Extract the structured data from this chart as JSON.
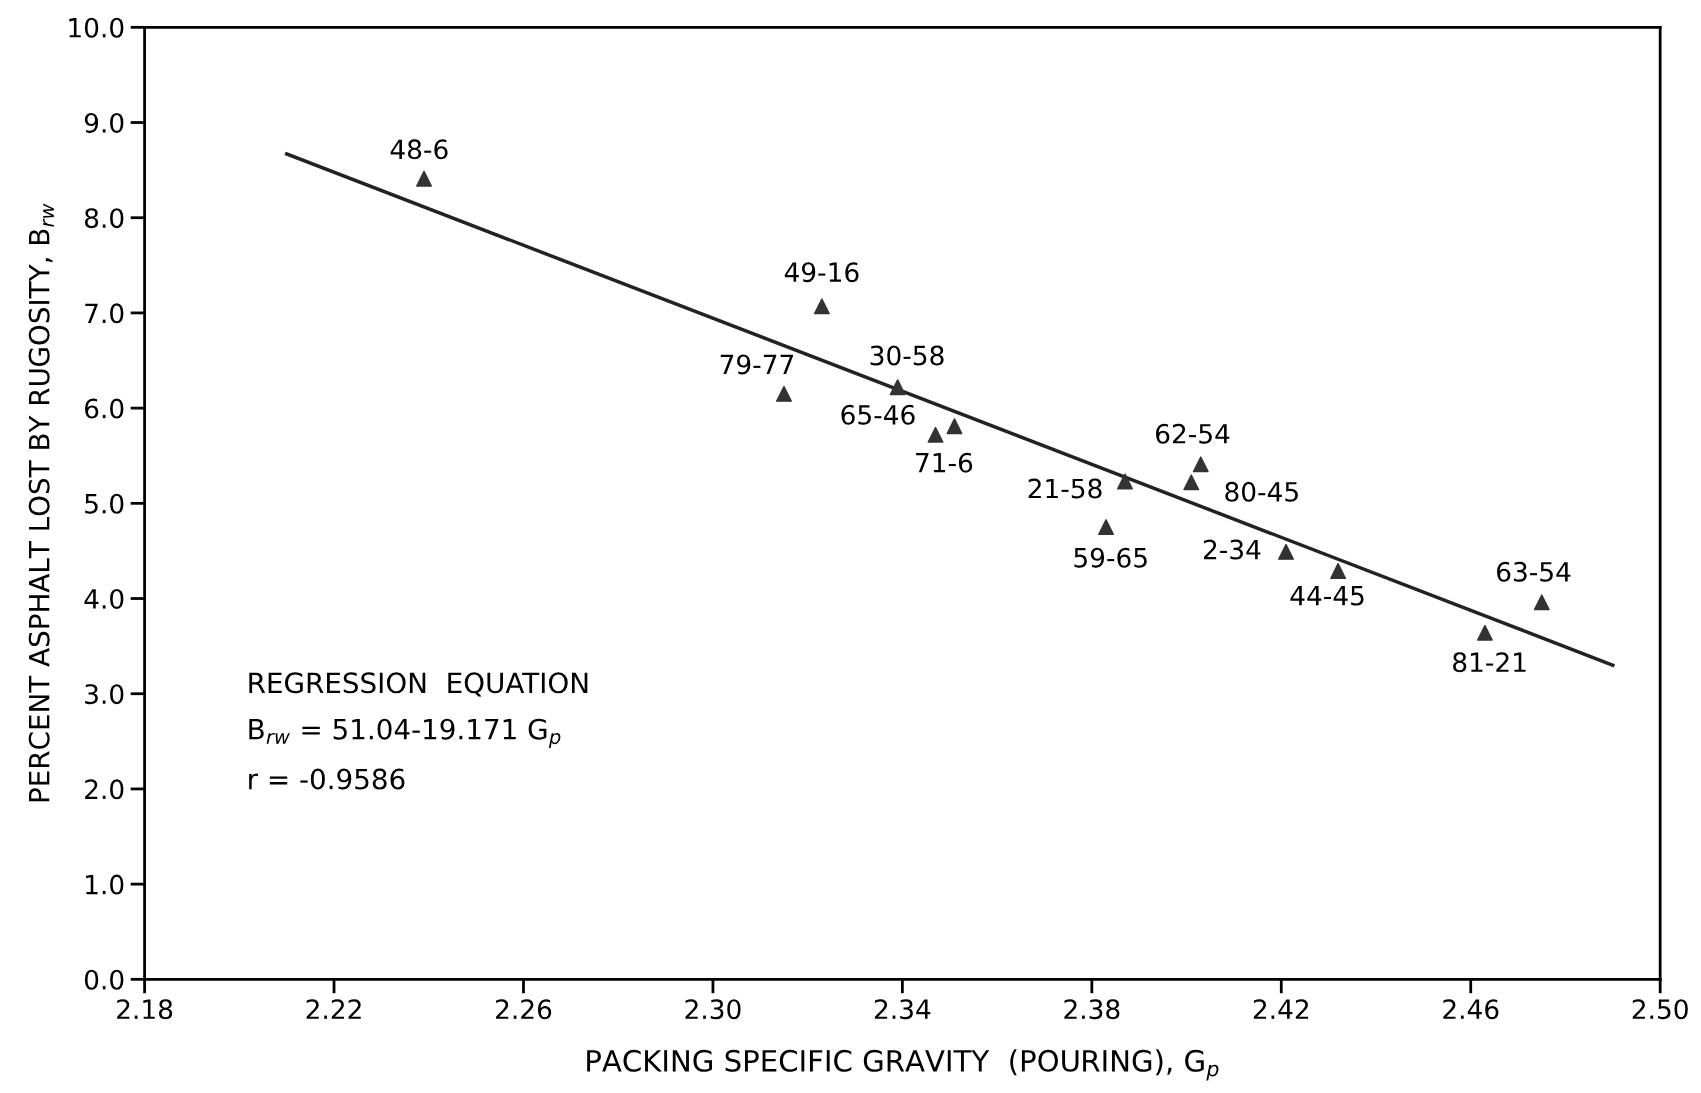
{
  "chart_data": {
    "type": "scatter",
    "xlabel": "PACKING SPECIFIC GRAVITY  (POURING), G$_{p}$",
    "ylabel": "PERCENT ASPHALT LOST BY RUGOSITY, B$_{rw}$",
    "xlim": [
      2.18,
      2.5
    ],
    "xticks": [
      {
        "value": 2.18,
        "label": "2.18"
      },
      {
        "value": 2.22,
        "label": "2.22"
      },
      {
        "value": 2.26,
        "label": "2.26"
      },
      {
        "value": 2.3,
        "label": "2.30"
      },
      {
        "value": 2.34,
        "label": "2.34"
      },
      {
        "value": 2.38,
        "label": "2.38"
      },
      {
        "value": 2.42,
        "label": "2.42"
      },
      {
        "value": 2.46,
        "label": "2.46"
      },
      {
        "value": 2.5,
        "label": "2.50"
      }
    ],
    "ylim": [
      0,
      10
    ],
    "yticks": [
      {
        "value": 0,
        "label": "0.0"
      },
      {
        "value": 1,
        "label": "1.0"
      },
      {
        "value": 2,
        "label": "2.0"
      },
      {
        "value": 3,
        "label": "3.0"
      },
      {
        "value": 4,
        "label": "4.0"
      },
      {
        "value": 5,
        "label": "5.0"
      },
      {
        "value": 6,
        "label": "6.0"
      },
      {
        "value": 7,
        "label": "7.0"
      },
      {
        "value": 8,
        "label": "8.0"
      },
      {
        "value": 9,
        "label": "9.0"
      },
      {
        "value": 10,
        "label": "10.0"
      }
    ],
    "grid": false,
    "legend": false,
    "series": [
      {
        "marker": "triangle",
        "color": "#333333",
        "x": [
          2.239,
          2.323,
          2.315,
          2.339,
          2.347,
          2.351,
          2.387,
          2.383,
          2.403,
          2.401,
          2.421,
          2.432,
          2.463,
          2.475
        ],
        "values": [
          8.41,
          7.07,
          6.15,
          6.22,
          5.72,
          5.81,
          5.23,
          4.75,
          5.41,
          5.22,
          4.49,
          4.29,
          3.64,
          3.96
        ]
      },
      {
        "type": "line",
        "marker": "none",
        "line_style": "solid",
        "color": "#222222",
        "x": [
          2.21,
          2.49
        ],
        "values": [
          8.67,
          3.3
        ]
      }
    ],
    "annotations": [
      {
        "text": "48-6",
        "x": 2.239,
        "y": 8.41
      },
      {
        "text": "49-16",
        "x": 2.323,
        "y": 7.07
      },
      {
        "text": "79-77",
        "x": 2.315,
        "y": 6.15
      },
      {
        "text": "30-58",
        "x": 2.339,
        "y": 6.22
      },
      {
        "text": "65-46",
        "x": 2.347,
        "y": 5.72
      },
      {
        "text": "71-6",
        "x": 2.351,
        "y": 5.81
      },
      {
        "text": "21-58",
        "x": 2.387,
        "y": 5.23
      },
      {
        "text": "59-65",
        "x": 2.383,
        "y": 4.75
      },
      {
        "text": "62-54",
        "x": 2.403,
        "y": 5.41
      },
      {
        "text": "80-45",
        "x": 2.401,
        "y": 5.22
      },
      {
        "text": "2-34",
        "x": 2.421,
        "y": 4.49
      },
      {
        "text": "44-45",
        "x": 2.432,
        "y": 4.29
      },
      {
        "text": "81-21",
        "x": 2.463,
        "y": 3.64
      },
      {
        "text": "63-54",
        "x": 2.475,
        "y": 3.96
      },
      "REGRESSION  EQUATION",
      "B$_{rw}$ = 51.04-19.171 G$_{p}$",
      "r = -0.9586"
    ]
  }
}
